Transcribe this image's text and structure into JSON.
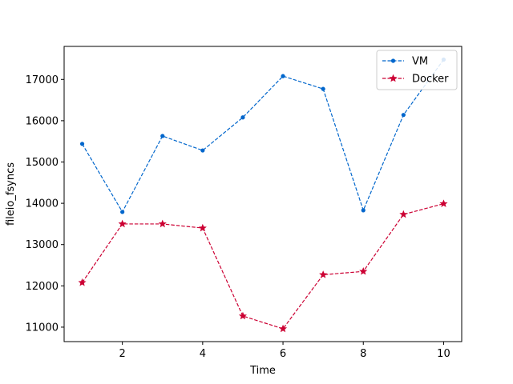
{
  "chart_data": {
    "type": "line",
    "title": "",
    "xlabel": "Time",
    "ylabel": "fileio_fsyncs",
    "x": [
      1,
      2,
      3,
      4,
      5,
      6,
      7,
      8,
      9,
      10
    ],
    "xlim": [
      0.55,
      10.45
    ],
    "ylim": [
      10650,
      17800
    ],
    "xticks": [
      2,
      4,
      6,
      8,
      10
    ],
    "yticks": [
      11000,
      12000,
      13000,
      14000,
      15000,
      16000,
      17000
    ],
    "grid": false,
    "legend_position": "top-right",
    "series": [
      {
        "name": "VM",
        "color": "#0066cc",
        "marker": "dot",
        "linestyle": "dashed",
        "values": [
          15440,
          13790,
          15630,
          15280,
          16080,
          17080,
          16770,
          13830,
          16140,
          17480
        ]
      },
      {
        "name": "Docker",
        "color": "#cc0033",
        "marker": "star",
        "linestyle": "dashed",
        "values": [
          12080,
          13500,
          13500,
          13400,
          11270,
          10960,
          12270,
          12350,
          13730,
          13990
        ]
      }
    ]
  }
}
